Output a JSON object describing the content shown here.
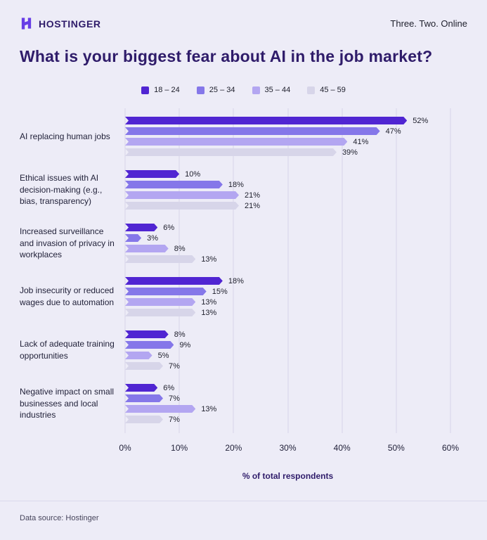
{
  "header": {
    "brand": "HOSTINGER",
    "tagline": "Three. Two. Online",
    "logo_color": "#673de6"
  },
  "title": "What is your biggest fear about AI in the job market?",
  "chart_data": {
    "type": "bar",
    "orientation": "horizontal",
    "title": "What is your biggest fear about AI in the job market?",
    "categories": [
      "AI replacing human jobs",
      "Ethical issues with AI decision-making (e.g., bias, transparency)",
      "Increased surveillance and invasion of privacy in workplaces",
      "Job insecurity or reduced wages due to automation",
      "Lack of adequate training opportunities",
      "Negative impact on small businesses and local industries"
    ],
    "series": [
      {
        "name": "18 – 24",
        "color": "#5025d2",
        "values": [
          52,
          10,
          6,
          18,
          8,
          6
        ]
      },
      {
        "name": "25 – 34",
        "color": "#8577e9",
        "values": [
          47,
          18,
          3,
          15,
          9,
          7
        ]
      },
      {
        "name": "35 – 44",
        "color": "#b3a6f1",
        "values": [
          41,
          21,
          8,
          13,
          5,
          13
        ]
      },
      {
        "name": "45 – 59",
        "color": "#d7d5e9",
        "values": [
          39,
          21,
          13,
          13,
          7,
          7
        ]
      }
    ],
    "value_suffix": "%",
    "xlabel": "% of total respondents",
    "x_ticks": [
      "0%",
      "10%",
      "20%",
      "30%",
      "40%",
      "50%",
      "60%"
    ],
    "xlim": [
      0,
      60
    ],
    "grid": true,
    "legend_position": "top"
  },
  "footer": {
    "source": "Data source: Hostinger"
  }
}
